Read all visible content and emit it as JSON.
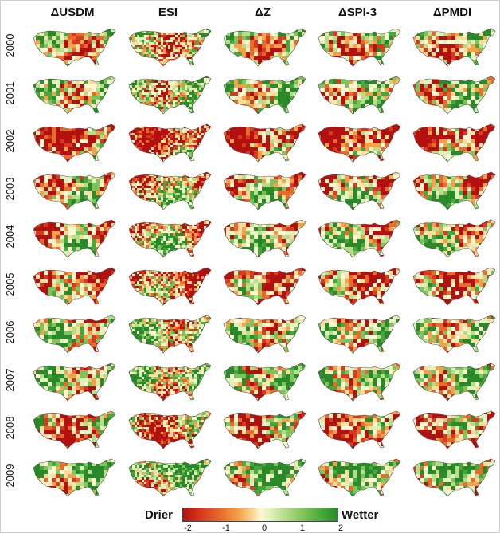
{
  "columns": [
    "ΔUSDM",
    "ESI",
    "ΔZ",
    "ΔSPI-3",
    "ΔPMDI"
  ],
  "years": [
    "2000",
    "2001",
    "2002",
    "2003",
    "2004",
    "2005",
    "2006",
    "2007",
    "2008",
    "2009"
  ],
  "legend": {
    "drier_label": "Drier",
    "wetter_label": "Wetter",
    "ticks": [
      "-2",
      "-1",
      "0",
      "1",
      "2"
    ],
    "range": [
      -2,
      2
    ]
  },
  "colors": {
    "very_dry": "#b2110f",
    "dry": "#e86b2c",
    "neutral": "#fdf7d4",
    "wet": "#7fc45a",
    "very_wet": "#2a8a2a"
  }
}
